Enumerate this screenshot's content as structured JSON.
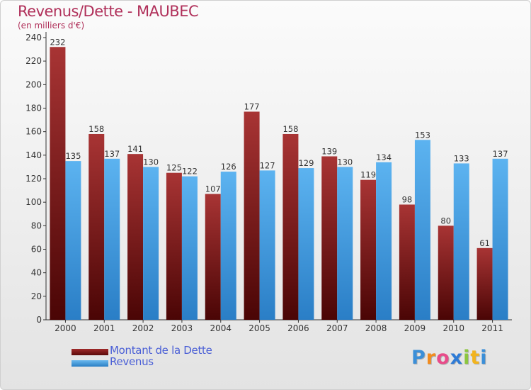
{
  "chart_data": {
    "type": "bar",
    "title": "Revenus/Dette - MAUBEC",
    "subtitle": "(en milliers d'€)",
    "categories": [
      "2000",
      "2001",
      "2002",
      "2003",
      "2004",
      "2005",
      "2006",
      "2007",
      "2008",
      "2009",
      "2010",
      "2011"
    ],
    "series": [
      {
        "name": "Montant de la Dette",
        "values": [
          232,
          158,
          141,
          125,
          107,
          177,
          158,
          139,
          119,
          98,
          80,
          61
        ],
        "color": "#8b1a1a"
      },
      {
        "name": "Revenus",
        "values": [
          135,
          137,
          130,
          122,
          126,
          127,
          129,
          130,
          134,
          153,
          133,
          137
        ],
        "color": "#3d9be0"
      }
    ],
    "ylim": [
      0,
      240
    ],
    "yticks": [
      0,
      20,
      40,
      60,
      80,
      100,
      120,
      140,
      160,
      180,
      200,
      220,
      240
    ],
    "grid": false,
    "legend_position": "bottom-left"
  },
  "logo": {
    "text": "Proxiti",
    "letters": [
      "P",
      "r",
      "o",
      "x",
      "i",
      "t",
      "i"
    ],
    "colors": [
      "#3b8fd8",
      "#f28c1e",
      "#e84c8a",
      "#2e7bd6",
      "#8cc63f",
      "#f2b41e",
      "#3b8fd8"
    ]
  }
}
